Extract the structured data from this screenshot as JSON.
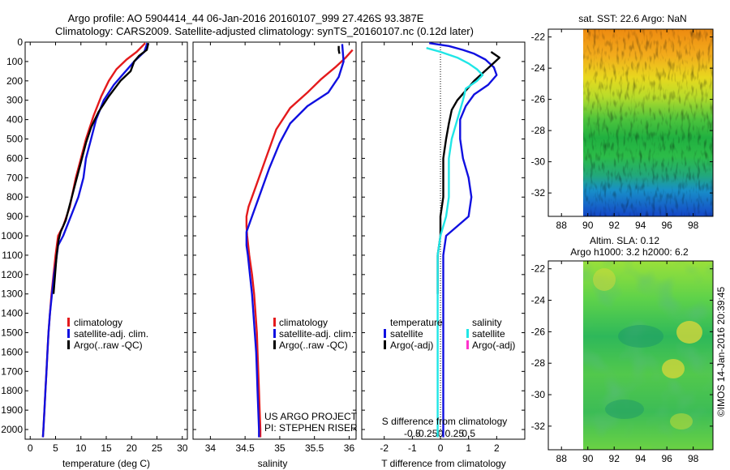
{
  "header": {
    "line1": "Argo profile: AO 5904414_44 06-Jan-2016 20160107_999 27.426S 93.387E",
    "line2": "Climatology: CARS2009. Satellite-adjusted climatology: synTS_20160107.nc (0.12d later)"
  },
  "depth_ticks": [
    0,
    100,
    200,
    300,
    400,
    500,
    600,
    700,
    800,
    900,
    1000,
    1100,
    1200,
    1300,
    1400,
    1500,
    1600,
    1700,
    1800,
    1900,
    2000
  ],
  "colors": {
    "red": "#e41a1c",
    "blue": "#1010e0",
    "black": "#000000",
    "cyan": "#20e6e6",
    "magenta": "#ff33cc"
  },
  "legend_basic": [
    "climatology",
    "satellite-adj. clim.",
    "Argo(..raw -QC)"
  ],
  "legend_diff": {
    "temp_header": "temperature",
    "sal_header": "salinity",
    "temp_items": [
      "satellite",
      "Argo(-adj)"
    ],
    "sal_items": [
      "satellite",
      "Argo(-adj)"
    ]
  },
  "credits": {
    "line1": "US ARGO PROJECT",
    "line2": "PI: STEPHEN RISER"
  },
  "map_sst": {
    "title": "sat. SST: 22.6  Argo: NaN"
  },
  "map_sla": {
    "title1": "Altim. SLA: 0.12",
    "title2": "Argo h1000: 3.2 h2000: 6.2"
  },
  "map_xticks": [
    "88",
    "90",
    "92",
    "94",
    "96",
    "98"
  ],
  "map_yticks": [
    "-22",
    "-24",
    "-26",
    "-28",
    "-30",
    "-32"
  ],
  "imos_stamp": "©IMOS 14-Jan-2016 20:39:45",
  "chart_data": [
    {
      "type": "line",
      "name": "temperature",
      "xlabel": "temperature (deg C)",
      "xlim": [
        -1,
        31
      ],
      "ylim": [
        0,
        2050
      ],
      "xticks": [
        0,
        5,
        10,
        15,
        20,
        25,
        30
      ],
      "series": [
        {
          "name": "climatology",
          "color": "red",
          "points": [
            [
              22.7,
              5
            ],
            [
              21,
              50
            ],
            [
              19,
              90
            ],
            [
              17,
              140
            ],
            [
              15.5,
              200
            ],
            [
              14,
              280
            ],
            [
              12.5,
              380
            ],
            [
              11,
              500
            ],
            [
              10,
              600
            ],
            [
              9,
              700
            ],
            [
              7.8,
              850
            ],
            [
              6.5,
              950
            ],
            [
              5.5,
              1000
            ],
            [
              5,
              1100
            ],
            [
              4.6,
              1200
            ],
            [
              4.2,
              1300
            ],
            [
              3.9,
              1400
            ],
            [
              3.6,
              1500
            ],
            [
              3.4,
              1600
            ],
            [
              3.2,
              1700
            ],
            [
              3,
              1800
            ],
            [
              2.8,
              1900
            ],
            [
              2.6,
              2000
            ],
            [
              2.5,
              2040
            ]
          ]
        },
        {
          "name": "satellite-adj. clim.",
          "color": "blue",
          "points": [
            [
              23.1,
              5
            ],
            [
              22.5,
              50
            ],
            [
              20.5,
              100
            ],
            [
              18.5,
              160
            ],
            [
              16.5,
              220
            ],
            [
              14.5,
              300
            ],
            [
              13,
              400
            ],
            [
              12,
              500
            ],
            [
              11,
              600
            ],
            [
              10.5,
              700
            ],
            [
              9.5,
              800
            ],
            [
              8,
              900
            ],
            [
              6.5,
              1000
            ],
            [
              5.5,
              1050
            ],
            [
              5,
              1150
            ],
            [
              4.7,
              1200
            ],
            [
              4.3,
              1300
            ],
            [
              3.9,
              1400
            ],
            [
              3.6,
              1500
            ],
            [
              3.4,
              1600
            ],
            [
              3.2,
              1700
            ],
            [
              3,
              1800
            ],
            [
              2.8,
              1900
            ],
            [
              2.6,
              2000
            ],
            [
              2.5,
              2040
            ]
          ]
        },
        {
          "name": "Argo(..raw -QC)",
          "color": "black",
          "points": [
            [
              23.3,
              5
            ],
            [
              23,
              40
            ],
            [
              21.5,
              70
            ],
            [
              20.5,
              100
            ],
            [
              19.8,
              150
            ],
            [
              17.8,
              200
            ],
            [
              15.5,
              280
            ],
            [
              13.5,
              360
            ],
            [
              12,
              440
            ],
            [
              11,
              520
            ],
            [
              10,
              620
            ],
            [
              9,
              720
            ],
            [
              8,
              820
            ],
            [
              7,
              920
            ],
            [
              6,
              980
            ],
            [
              5.6,
              1020
            ],
            [
              5.2,
              1100
            ],
            [
              4.9,
              1200
            ],
            [
              4.6,
              1300
            ]
          ]
        }
      ]
    },
    {
      "type": "line",
      "name": "salinity",
      "xlabel": "salinity",
      "xlim": [
        33.75,
        36.1
      ],
      "ylim": [
        0,
        2050
      ],
      "xticks": [
        34,
        34.5,
        35,
        35.5,
        36
      ],
      "xtick_labels": [
        "34",
        "34.5",
        "35",
        "35.5",
        "36"
      ],
      "series": [
        {
          "name": "climatology",
          "color": "red",
          "points": [
            [
              36.05,
              40
            ],
            [
              35.95,
              80
            ],
            [
              35.8,
              130
            ],
            [
              35.6,
              190
            ],
            [
              35.4,
              260
            ],
            [
              35.15,
              340
            ],
            [
              34.95,
              450
            ],
            [
              34.8,
              600
            ],
            [
              34.65,
              750
            ],
            [
              34.55,
              850
            ],
            [
              34.52,
              900
            ],
            [
              34.52,
              950
            ],
            [
              34.53,
              1000
            ],
            [
              34.56,
              1100
            ],
            [
              34.6,
              1200
            ],
            [
              34.63,
              1300
            ],
            [
              34.65,
              1400
            ],
            [
              34.67,
              1500
            ],
            [
              34.68,
              1600
            ],
            [
              34.69,
              1700
            ],
            [
              34.7,
              1800
            ],
            [
              34.71,
              1900
            ],
            [
              34.72,
              2000
            ],
            [
              34.72,
              2040
            ]
          ]
        },
        {
          "name": "satellite-adj. clim.",
          "color": "blue",
          "points": [
            [
              35.9,
              10
            ],
            [
              35.92,
              100
            ],
            [
              35.85,
              180
            ],
            [
              35.7,
              260
            ],
            [
              35.4,
              330
            ],
            [
              35.15,
              420
            ],
            [
              35,
              520
            ],
            [
              34.85,
              650
            ],
            [
              34.7,
              800
            ],
            [
              34.6,
              900
            ],
            [
              34.52,
              980
            ],
            [
              34.52,
              1050
            ],
            [
              34.54,
              1100
            ],
            [
              34.57,
              1200
            ],
            [
              34.6,
              1300
            ],
            [
              34.62,
              1400
            ],
            [
              34.64,
              1500
            ],
            [
              34.66,
              1600
            ],
            [
              34.67,
              1700
            ],
            [
              34.68,
              1800
            ],
            [
              34.69,
              1900
            ],
            [
              34.7,
              2000
            ],
            [
              34.7,
              2040
            ]
          ]
        },
        {
          "name": "Argo(..raw -QC)",
          "color": "black",
          "points": [
            [
              35.85,
              20
            ],
            [
              35.85,
              40
            ],
            [
              35.86,
              60
            ]
          ]
        }
      ]
    },
    {
      "type": "line",
      "name": "difference",
      "xlabel": "T difference from climatology",
      "xlabel_top": "S difference from climatology",
      "xlim": [
        -2.8,
        3.0
      ],
      "ylim": [
        0,
        2050
      ],
      "xticks": [
        -2,
        -1,
        0,
        1,
        2
      ],
      "xticks_top": [
        -1.0,
        -0.5,
        0,
        0.5,
        1.0
      ],
      "xtick_top_labels": [
        "-0.5",
        "-0.25",
        "0",
        "0.25",
        "0.5"
      ],
      "series": [
        {
          "name": "temperature satellite",
          "color": "blue",
          "points": [
            [
              -0.4,
              5
            ],
            [
              0.3,
              20
            ],
            [
              0.8,
              40
            ],
            [
              1.2,
              60
            ],
            [
              1.6,
              90
            ],
            [
              1.9,
              130
            ],
            [
              2,
              170
            ],
            [
              1.7,
              220
            ],
            [
              1.2,
              270
            ],
            [
              0.9,
              330
            ],
            [
              0.7,
              400
            ],
            [
              0.7,
              500
            ],
            [
              0.8,
              600
            ],
            [
              1,
              700
            ],
            [
              1.1,
              800
            ],
            [
              1,
              900
            ],
            [
              0.6,
              950
            ],
            [
              0.2,
              1000
            ],
            [
              0.1,
              1100
            ],
            [
              0.1,
              1300
            ],
            [
              0.1,
              1600
            ],
            [
              0.1,
              1900
            ],
            [
              0.1,
              2040
            ]
          ]
        },
        {
          "name": "temperature Argo(-adj)",
          "color": "black",
          "points": [
            [
              1.8,
              50
            ],
            [
              2.1,
              80
            ],
            [
              1.8,
              120
            ],
            [
              1.5,
              160
            ],
            [
              1.2,
              200
            ],
            [
              0.9,
              250
            ],
            [
              0.6,
              300
            ],
            [
              0.4,
              350
            ],
            [
              0.3,
              420
            ],
            [
              0.2,
              500
            ],
            [
              0.1,
              600
            ],
            [
              0.1,
              700
            ],
            [
              0.1,
              800
            ],
            [
              0,
              900
            ],
            [
              0,
              1000
            ],
            [
              -0.1,
              1100
            ],
            [
              -0.1,
              1200
            ],
            [
              -0.1,
              1300
            ]
          ]
        },
        {
          "name": "salinity satellite",
          "color": "cyan",
          "points": [
            [
              -0.5,
              30
            ],
            [
              0,
              50
            ],
            [
              0.6,
              80
            ],
            [
              1,
              110
            ],
            [
              1.3,
              140
            ],
            [
              1.5,
              170
            ],
            [
              1.3,
              200
            ],
            [
              0.9,
              240
            ],
            [
              0.8,
              300
            ],
            [
              0.6,
              400
            ],
            [
              0.4,
              500
            ],
            [
              0.3,
              600
            ],
            [
              0.3,
              700
            ],
            [
              0.3,
              800
            ],
            [
              0.2,
              900
            ],
            [
              0,
              1000
            ],
            [
              -0.1,
              1100
            ],
            [
              -0.1,
              1300
            ],
            [
              -0.1,
              1600
            ],
            [
              -0.1,
              1900
            ],
            [
              -0.1,
              2040
            ]
          ]
        }
      ]
    }
  ]
}
